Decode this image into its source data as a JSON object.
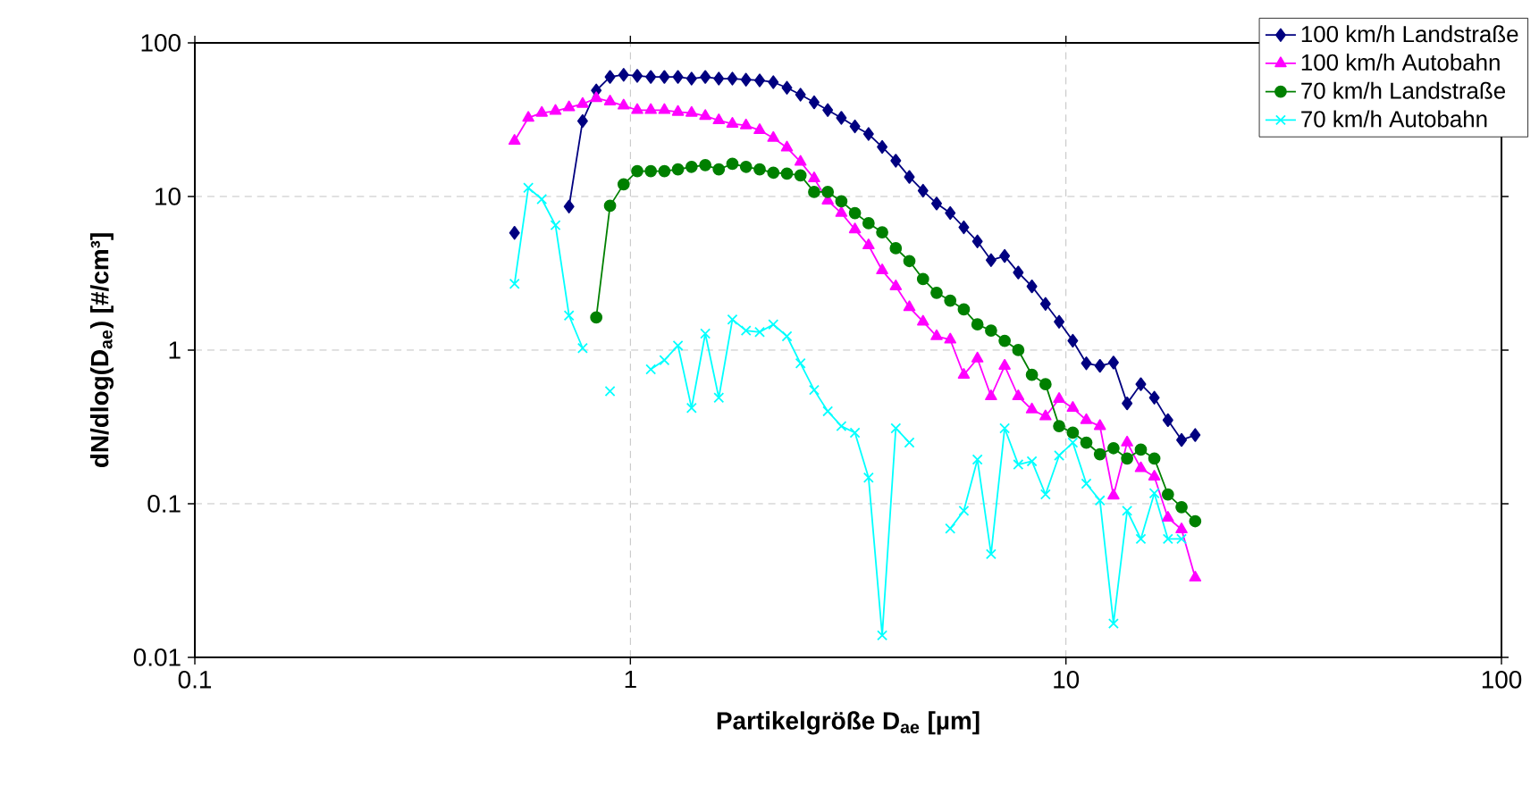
{
  "chart_data": {
    "type": "line",
    "xlabel": "Partikelgröße D$_{ae}$ [µm]",
    "ylabel": "dN/dlog(D$_{ae}$) [#/cm³]",
    "log": "xy",
    "grid": true,
    "legend": "top right",
    "xlim": [
      0.1,
      100
    ],
    "xticks": [
      0.1,
      1,
      10,
      100
    ],
    "ylim": [
      0.01,
      100
    ],
    "yticks": [
      0.01,
      0.1,
      1,
      10,
      100
    ],
    "x": [
      0.542,
      0.583,
      0.626,
      0.673,
      0.723,
      0.777,
      0.835,
      0.898,
      0.965,
      1.037,
      1.114,
      1.197,
      1.286,
      1.382,
      1.486,
      1.596,
      1.715,
      1.843,
      1.981,
      2.129,
      2.288,
      2.458,
      2.642,
      2.839,
      3.051,
      3.278,
      3.523,
      3.786,
      4.068,
      4.371,
      4.698,
      5.048,
      5.425,
      5.829,
      6.264,
      6.732,
      7.234,
      7.774,
      8.354,
      8.977,
      9.647,
      10.37,
      11.14,
      11.97,
      12.86,
      13.82,
      14.86,
      15.96,
      17.15,
      18.43,
      19.81
    ],
    "series": [
      {
        "name": "100 km/h Landstraße",
        "color": "#000080",
        "marker": "diamond",
        "values": [
          5.8,
          null,
          null,
          null,
          8.6,
          31,
          49,
          60,
          62,
          61,
          60,
          60,
          60,
          58.5,
          60,
          58.5,
          58.5,
          57.6,
          57,
          55.5,
          51,
          46,
          41,
          36.5,
          32.5,
          28.6,
          25.5,
          21,
          17.1,
          13.4,
          10.9,
          9.0,
          7.8,
          6.3,
          5.1,
          3.85,
          4.1,
          3.2,
          2.6,
          2.0,
          1.53,
          1.15,
          0.82,
          0.79,
          0.83,
          0.45,
          0.6,
          0.49,
          0.35,
          0.26,
          0.28
        ]
      },
      {
        "name": "100 km/h Autobahn",
        "color": "#ff00ff",
        "marker": "triangle",
        "values": [
          23,
          32.5,
          35,
          36,
          38,
          40,
          43.6,
          41.5,
          39,
          36.5,
          36.5,
          36.5,
          35.5,
          35,
          33.4,
          31.3,
          29.7,
          29,
          27,
          24,
          20.8,
          16.8,
          13.1,
          9.4,
          7.8,
          6.1,
          4.8,
          3.3,
          2.6,
          1.9,
          1.53,
          1.23,
          1.17,
          0.69,
          0.88,
          0.5,
          0.79,
          0.5,
          0.41,
          0.37,
          0.48,
          0.42,
          0.35,
          0.32,
          0.113,
          0.25,
          0.17,
          0.15,
          0.081,
          0.068,
          0.033
        ]
      },
      {
        "name": "70 km/h Landstraße",
        "color": "#008000",
        "marker": "circle",
        "values": [
          null,
          null,
          null,
          null,
          null,
          null,
          1.63,
          8.7,
          12,
          14.6,
          14.6,
          14.6,
          15,
          15.6,
          16,
          15,
          16.3,
          15.6,
          15,
          14.3,
          14.1,
          13.7,
          10.7,
          10.7,
          9.3,
          7.8,
          6.7,
          5.85,
          4.6,
          3.8,
          2.9,
          2.36,
          2.1,
          1.84,
          1.47,
          1.34,
          1.15,
          1.0,
          0.69,
          0.6,
          0.32,
          0.29,
          0.25,
          0.21,
          0.23,
          0.197,
          0.225,
          0.197,
          0.115,
          0.095,
          0.077
        ]
      },
      {
        "name": "70 km/h Autobahn",
        "color": "#00ffff",
        "marker": "cross",
        "values": [
          2.7,
          11.4,
          9.6,
          6.5,
          1.68,
          1.03,
          null,
          0.54,
          null,
          null,
          0.75,
          0.86,
          1.07,
          0.42,
          1.28,
          0.49,
          1.58,
          1.34,
          1.31,
          1.47,
          1.23,
          0.82,
          0.55,
          0.4,
          0.32,
          0.29,
          0.148,
          0.0139,
          0.31,
          0.25,
          null,
          null,
          0.069,
          0.09,
          0.194,
          0.047,
          0.31,
          0.18,
          0.189,
          0.115,
          0.206,
          0.25,
          0.135,
          0.105,
          0.0166,
          0.09,
          0.059,
          0.117,
          0.059,
          0.059,
          null
        ]
      }
    ]
  }
}
